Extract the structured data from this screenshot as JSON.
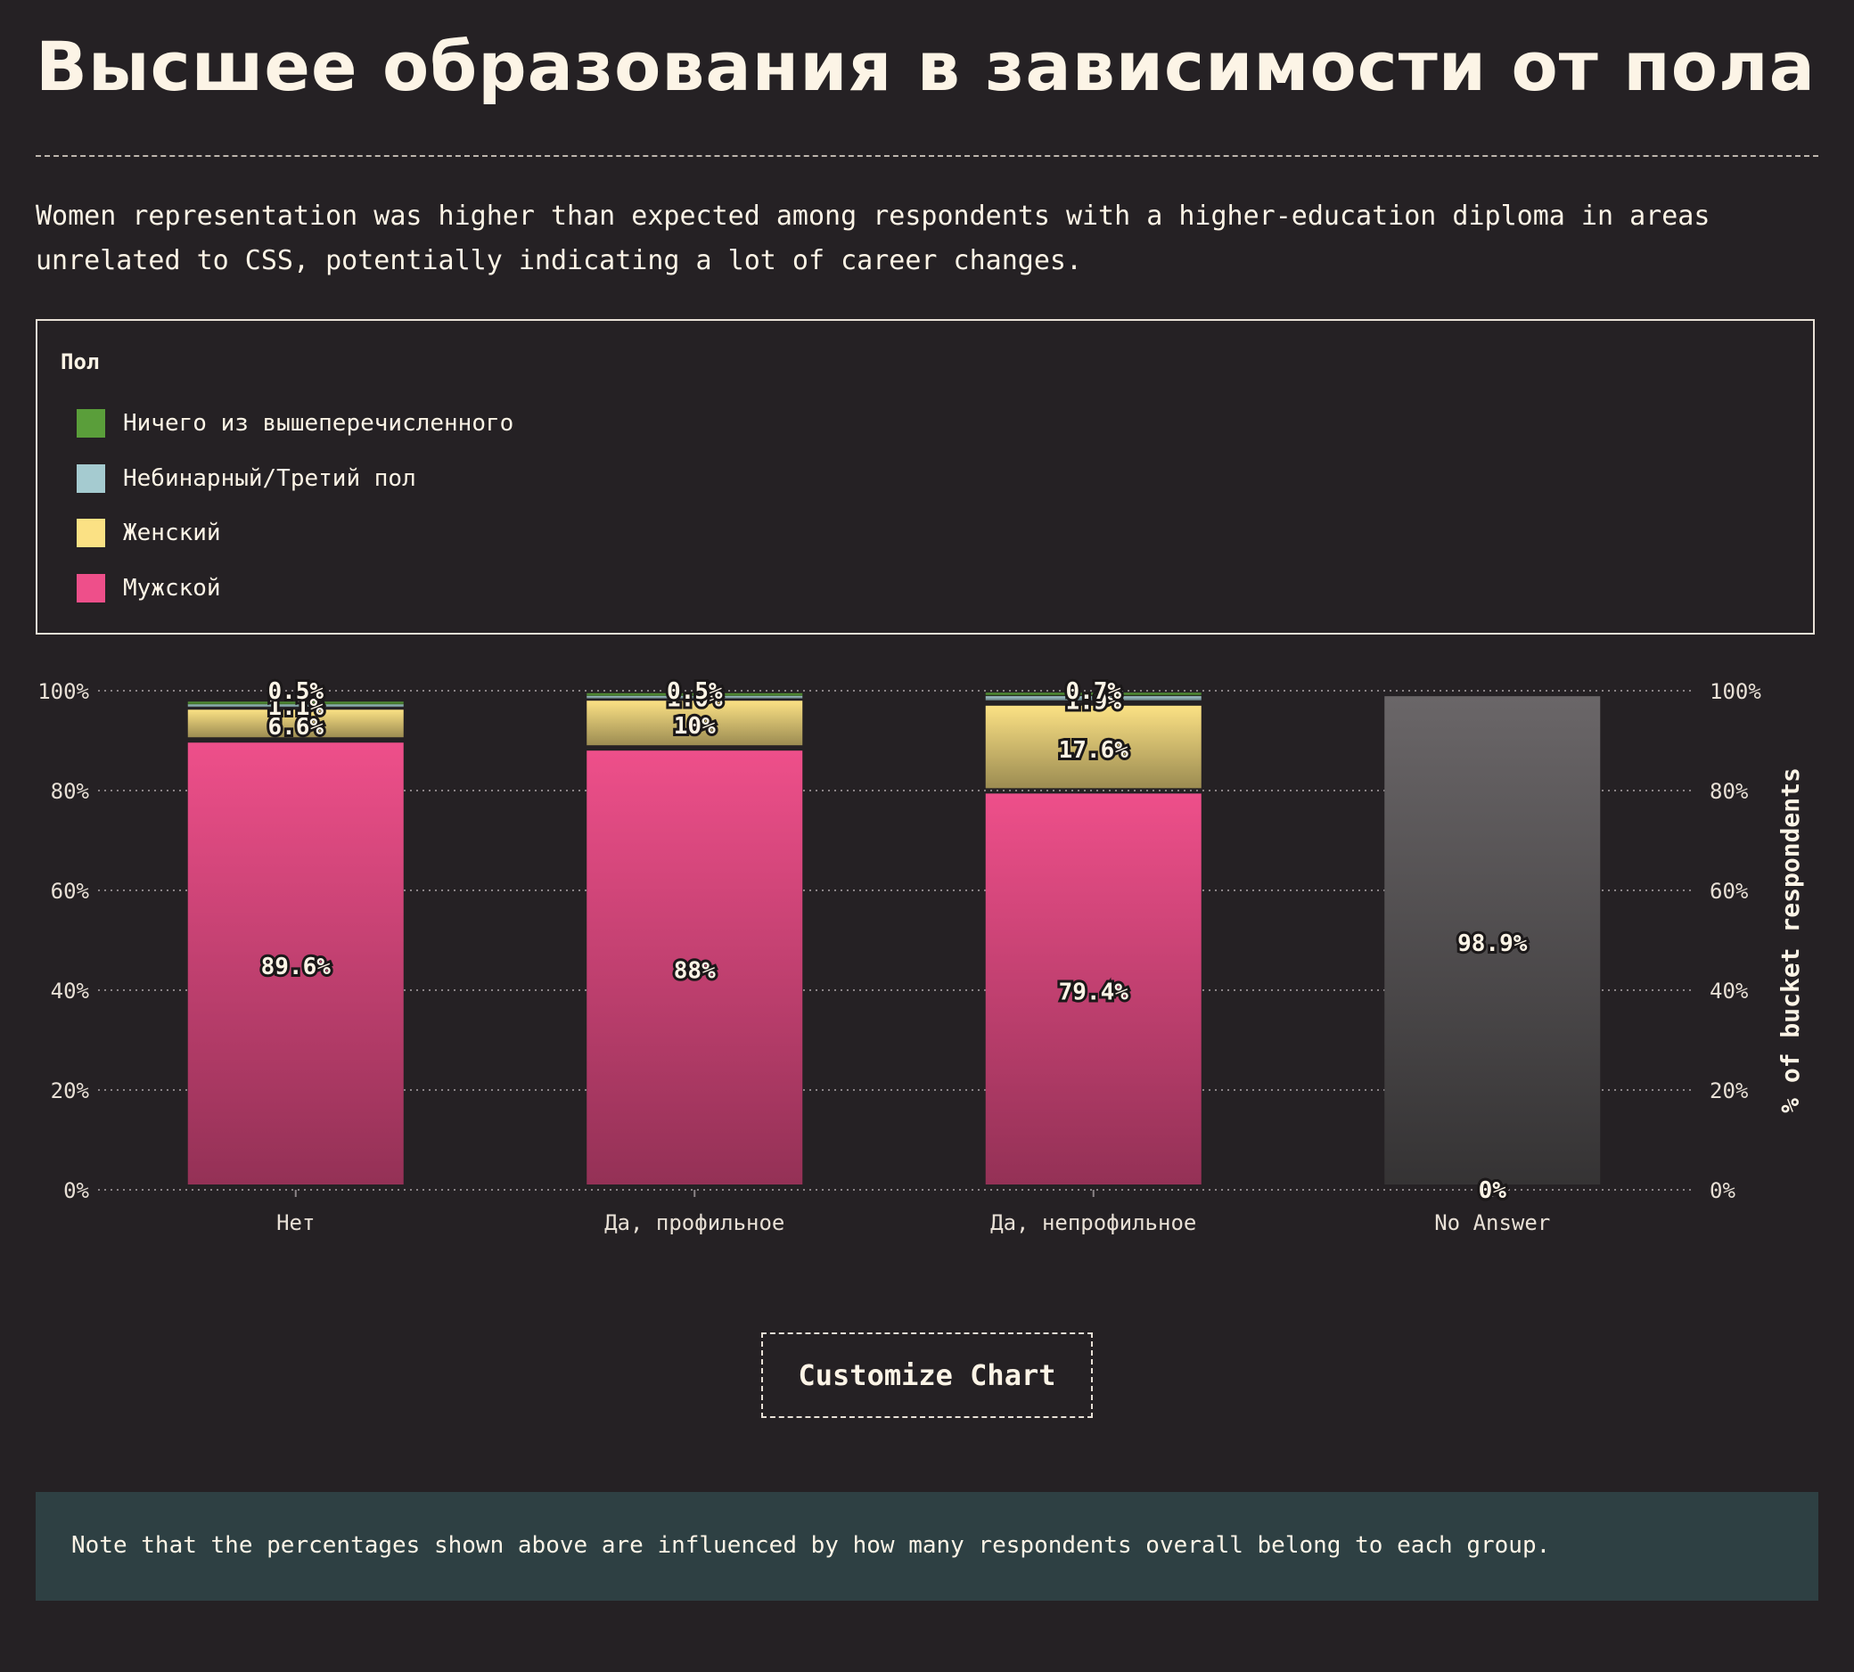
{
  "header": {
    "title": "Высшее образования в зависимости от пола",
    "description": "Women representation was higher than expected among respondents with a higher-education diploma in areas unrelated to CSS, potentially indicating a lot of career changes."
  },
  "legend": {
    "title": "Пол",
    "items": [
      {
        "label": "Ничего из вышеперечисленного",
        "color": "#5a9e3a"
      },
      {
        "label": "Небинарный/Третий пол",
        "color": "#a5cbd0"
      },
      {
        "label": "Женский",
        "color": "#fbe184"
      },
      {
        "label": "Мужской",
        "color": "#ee4f8a"
      }
    ]
  },
  "chart_data": {
    "type": "bar",
    "stacked": true,
    "categories": [
      "Нет",
      "Да, профильное",
      "Да, непрофильное",
      "No Answer"
    ],
    "series": [
      {
        "name": "Мужской",
        "color": "#ee4f8a",
        "values": [
          89.6,
          88,
          79.4,
          0
        ]
      },
      {
        "name": "Женский",
        "color": "#fbe184",
        "values": [
          6.6,
          10,
          17.6,
          0
        ]
      },
      {
        "name": "Небинарный/Третий пол",
        "color": "#a5cbd0",
        "values": [
          1.1,
          1.0,
          1.9,
          0
        ]
      },
      {
        "name": "Ничего из вышеперечисленного",
        "color": "#5a9e3a",
        "values": [
          0.5,
          0.5,
          0.7,
          0
        ]
      },
      {
        "name": "No Answer",
        "color": "#6a6668",
        "values": [
          0,
          0,
          0,
          98.9
        ]
      }
    ],
    "value_labels": [
      [
        "89.6%",
        "6.6%",
        "1.1%",
        "0.5%",
        ""
      ],
      [
        "88%",
        "10%",
        "1.0%",
        "0.5%",
        ""
      ],
      [
        "79.4%",
        "17.6%",
        "1.9%",
        "0.7%",
        ""
      ],
      [
        "0%",
        "0%",
        "0%",
        "0%",
        "98.9%"
      ]
    ],
    "ylabel": "% of bucket respondents",
    "ylim": [
      0,
      100
    ],
    "yticks": [
      "0%",
      "20%",
      "40%",
      "60%",
      "80%",
      "100%"
    ],
    "grid": true
  },
  "actions": {
    "customize_label": "Customize Chart"
  },
  "footer": {
    "note": "Note that the percentages shown above are influenced by how many respondents overall belong to each group."
  }
}
